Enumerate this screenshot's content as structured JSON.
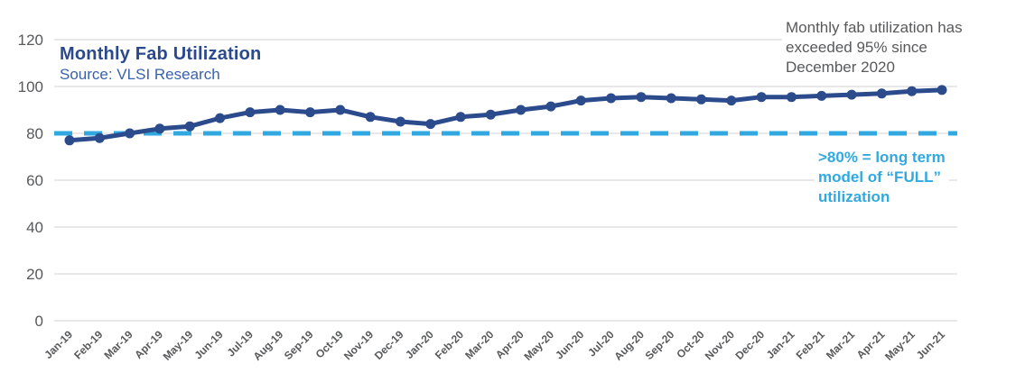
{
  "colors": {
    "series_line": "#2b4b8d",
    "threshold_line": "#31a9e0",
    "title_text": "#2b4a8e",
    "source_text": "#3a62ac",
    "note_text": "#58595b",
    "axis_text": "#58595b",
    "gridline": "#d9dada"
  },
  "annotations": {
    "exceeded_95": {
      "lines": [
        "Monthly fab utilization has",
        "exceeded 95% since",
        "December 2020"
      ]
    },
    "threshold_label": {
      "lines": [
        ">80% = long term",
        "model of “FULL”",
        "utilization"
      ]
    }
  },
  "chart_data": {
    "type": "line",
    "title": "Monthly Fab Utilization",
    "source": "Source: VLSI Research",
    "x": [
      "Jan-19",
      "Feb-19",
      "Mar-19",
      "Apr-19",
      "May-19",
      "Jun-19",
      "Jul-19",
      "Aug-19",
      "Sep-19",
      "Oct-19",
      "Nov-19",
      "Dec-19",
      "Jan-20",
      "Feb-20",
      "Mar-20",
      "Apr-20",
      "May-20",
      "Jun-20",
      "Jul-20",
      "Aug-20",
      "Sep-20",
      "Oct-20",
      "Nov-20",
      "Dec-20",
      "Jan-21",
      "Feb-21",
      "Mar-21",
      "Apr-21",
      "May-21",
      "Jun-21"
    ],
    "series": [
      {
        "name": "Monthly Fab Utilization",
        "values": [
          77,
          78,
          80,
          82,
          83,
          86.5,
          89,
          90,
          89,
          90,
          87,
          85,
          84,
          87,
          88,
          90,
          91.5,
          94,
          95,
          95.5,
          95,
          94.5,
          94,
          95.5,
          95.5,
          96,
          96.5,
          97,
          98,
          98.5
        ]
      }
    ],
    "threshold": {
      "value": 80,
      "style": "dashed"
    },
    "ylim": [
      0,
      120
    ],
    "yticks": [
      0,
      20,
      40,
      60,
      80,
      100,
      120
    ],
    "grid": true,
    "legend_position": "none"
  }
}
